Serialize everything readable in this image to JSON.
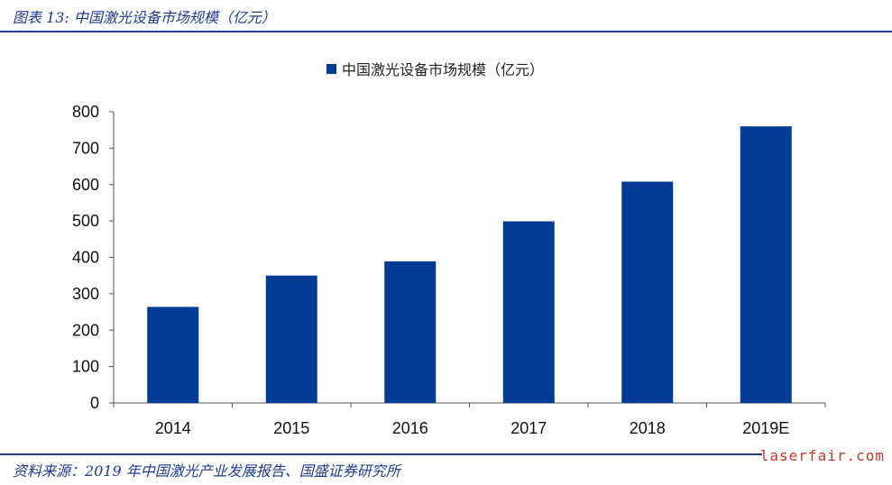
{
  "figure": {
    "title": "图表 13:  中国激光设备市场规模（亿元）",
    "source": "资料来源：2019 年中国激光产业发展报告、国盛证券研究所",
    "watermark": "laserfair.com"
  },
  "colors": {
    "bar": "#003b96",
    "accent": "#1f3a93",
    "axis": "#555555"
  },
  "chart_data": {
    "type": "bar",
    "categories": [
      "2014",
      "2015",
      "2016",
      "2017",
      "2018",
      "2019E"
    ],
    "series": [
      {
        "name": "中国激光设备市场规模（亿元）",
        "values": [
          264,
          350,
          389,
          499,
          608,
          760
        ]
      }
    ],
    "ylim": [
      0,
      800
    ],
    "yticks": [
      0,
      100,
      200,
      300,
      400,
      500,
      600,
      700,
      800
    ],
    "legend_position": "top-center",
    "grid": false
  }
}
